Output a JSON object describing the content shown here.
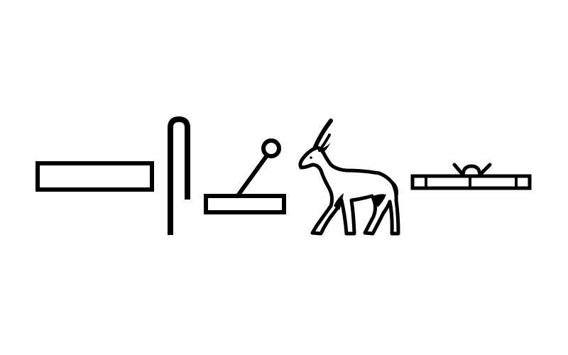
{
  "glyph_color": "#000000",
  "background_color": "#ffffff",
  "glyphs": [
    {
      "name": "rectangle-glyph-icon"
    },
    {
      "name": "crook-staff-glyph-icon"
    },
    {
      "name": "lever-on-block-glyph-icon"
    },
    {
      "name": "goat-glyph-icon"
    },
    {
      "name": "flat-bar-with-loop-glyph-icon"
    }
  ]
}
